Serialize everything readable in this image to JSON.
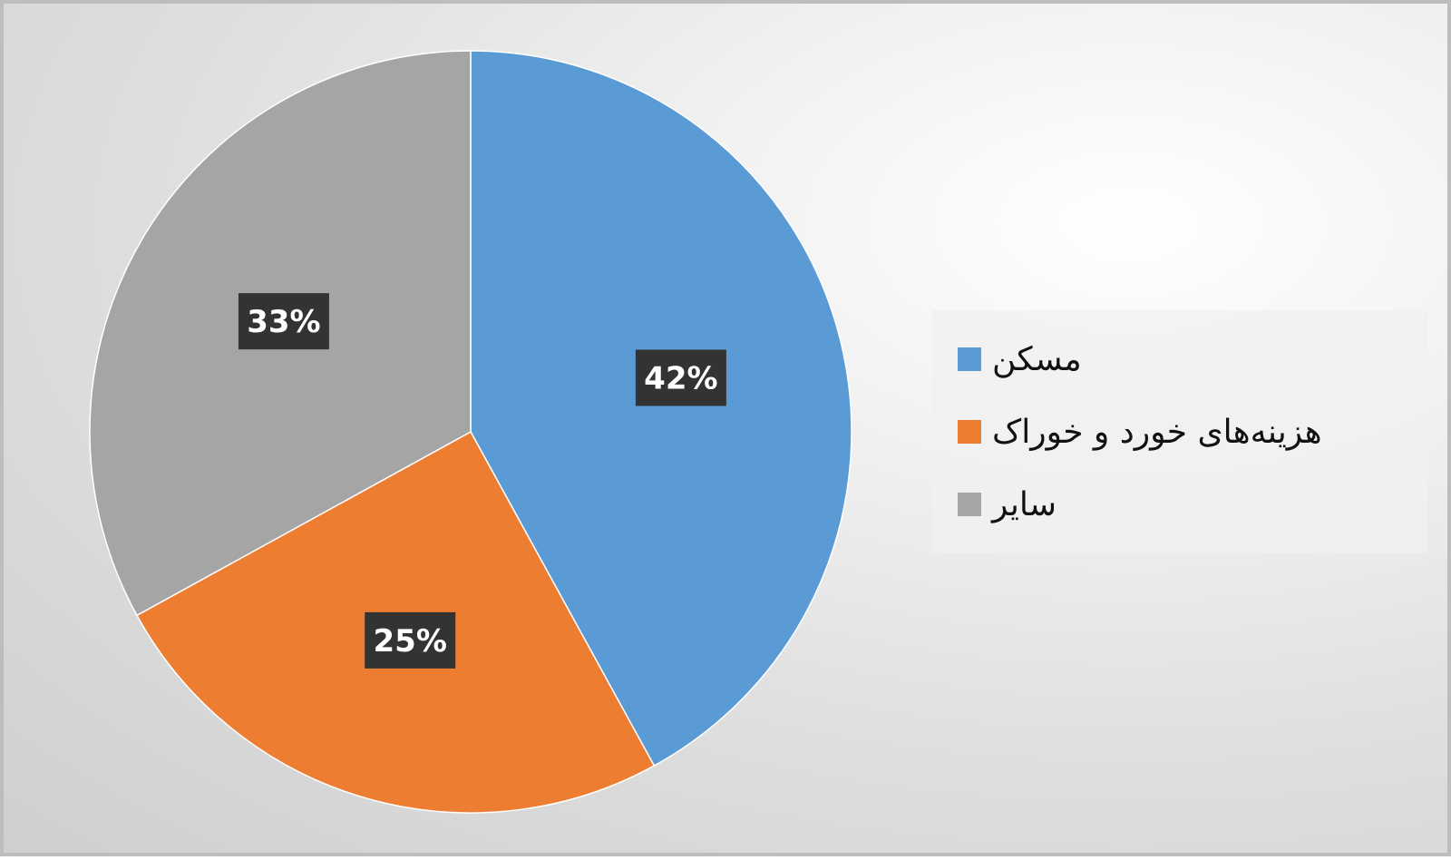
{
  "chart_data": {
    "type": "pie",
    "title": "",
    "categories": [
      "مسکن",
      "هزینه‌های خورد و خوراک",
      "سایر"
    ],
    "values": [
      42,
      25,
      33
    ],
    "value_labels": [
      "42%",
      "25%",
      "33%"
    ],
    "colors": [
      "#5B9BD5",
      "#ED7D31",
      "#A5A5A5"
    ],
    "start_angle_deg": 0,
    "direction": "clockwise",
    "legend": {
      "position": "right",
      "entries": [
        "مسکن",
        "هزینه‌های خورد و خوراک",
        "سایر"
      ]
    }
  }
}
